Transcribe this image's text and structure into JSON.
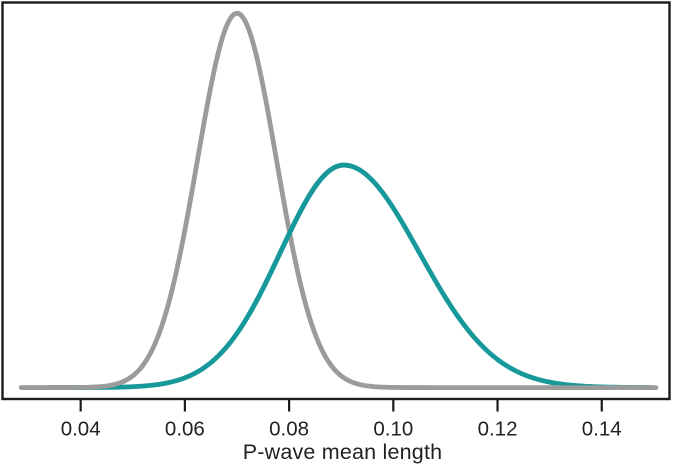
{
  "styles": {
    "background": "#ffffff",
    "frame_color": "#1b1b1b",
    "text_color": "#231f20",
    "curve_width": 4.8,
    "frame_width": 2.4,
    "tick_width": 2.2
  },
  "chart_data": {
    "type": "line",
    "subtype": "kernel-density",
    "title": "",
    "xlabel": "P-wave mean length",
    "ylabel": "",
    "grid": false,
    "legend": false,
    "frame": "box",
    "x_ticks": [
      0.04,
      0.06,
      0.08,
      0.1,
      0.12,
      0.14
    ],
    "x_tick_labels": [
      "0.04",
      "0.06",
      "0.08",
      "0.10",
      "0.12",
      "0.14"
    ],
    "xlim": [
      0.025,
      0.153
    ],
    "ylim": [
      -1.6,
      54.0
    ],
    "series": [
      {
        "name": "gray-density",
        "color": "#9b9b9b",
        "curve": "normal",
        "mean": 0.07,
        "sd_left": 0.0076,
        "sd_right": 0.0076,
        "peak_density": 52.5,
        "x_range": [
          0.0286,
          0.1504
        ]
      },
      {
        "name": "teal-density",
        "color": "#17999c",
        "curve": "split-normal",
        "mean": 0.0905,
        "sd_left": 0.0122,
        "sd_right": 0.0145,
        "peak_density": 31.2,
        "x_range": [
          0.0296,
          0.1496
        ]
      }
    ],
    "crossover_overlay": {
      "series_index": 1,
      "x_from": 0.072,
      "x_to": 0.093
    }
  }
}
